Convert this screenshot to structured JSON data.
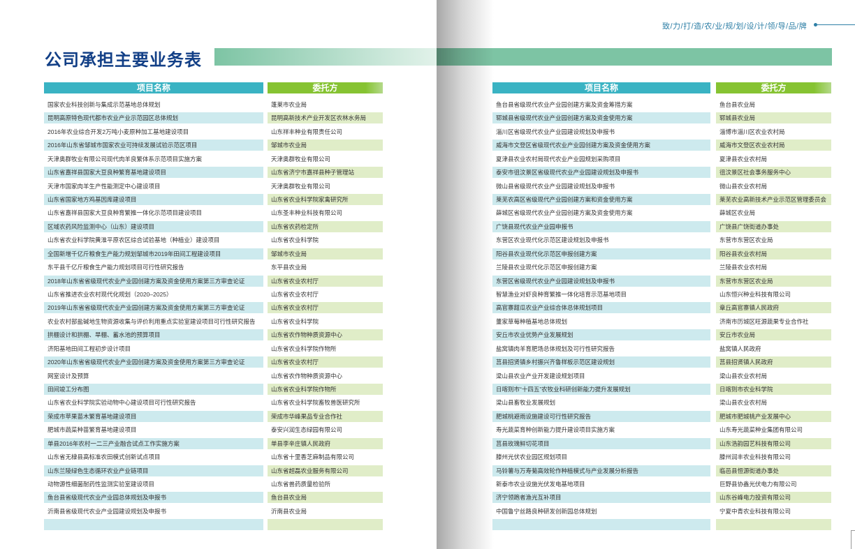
{
  "header": {
    "title": "公司承担主要业务表",
    "slogan": "致/力/打/造/农/业/规/划/设/计/领/导/品/牌"
  },
  "colors": {
    "title": "#123f86",
    "name_header": "#3ab3c3",
    "client_header": "#86c332",
    "banner": "#7dc4a4",
    "name_stripe": "#cdeaee",
    "client_stripe": "#e0edc8"
  },
  "tables": [
    {
      "col_name": "项目名称",
      "col_client": "委托方",
      "rows": [
        [
          "国家农业科技创新与集成示范基地总体规划",
          "蓬莱市农业局"
        ],
        [
          "昆明高原特色现代都市农业产业示范园区总体规划",
          "昆明高新技术产业开发区农林水务局"
        ],
        [
          "2016年农业综合开发2万吨小麦原种加工基地建设项目",
          "山东祥丰种业有限责任公司"
        ],
        [
          "2016年山东省邹城市国家农业可持续发展试验示范区项目",
          "邹城市农业局"
        ],
        [
          "天津奥群牧业有限公司现代肉羊良繁体系示范项目实施方案",
          "天津奥群牧业有限公司"
        ],
        [
          "山东省嘉祥县国家大豆良种繁育基地建设项目",
          "山东省济宁市嘉祥县种子管理站"
        ],
        [
          "天津市国家肉羊生产性能测定中心建设项目",
          "天津奥群牧业有限公司"
        ],
        [
          "山东省国家地方鸡基因库建设项目",
          "山东省农业科学院家禽研究所"
        ],
        [
          "山东省嘉祥县国家大豆良种育繁推一体化示范项目建设项目",
          "山东圣丰种业科技有限公司"
        ],
        [
          "区域农药风险监测中心（山东）建设项目",
          "山东省农药检定所"
        ],
        [
          "山东省农业科学院黄淮平原农区综合试验基地（种植业）建设项目",
          "山东省农业科学院"
        ],
        [
          "全国新增千亿斤粮食生产能力规划邹城市2019年田间工程建设项目",
          "邹城市农业局"
        ],
        [
          "东平县千亿斤粮食生产能力规划项目可行性研究报告",
          "东平县农业局"
        ],
        [
          "2018年山东省省级现代农业产业园创建方案及资金使用方案第三方审查论证",
          "山东省农业农村厅"
        ],
        [
          "山东省推进农业农村现代化规划（2020–2025）",
          "山东省农业农村厅"
        ],
        [
          "2019年山东省省级现代农业产业园创建方案及资金使用方案第三方审查论证",
          "山东省农业农村厅"
        ],
        [
          "农业农村部盐碱地生物资源收集与评价利用重点实验室建设项目可行性研究报告",
          "山东省农业科学院"
        ],
        [
          "拱棚设计和拱棚、旱棚、蓄水池的预算项目",
          "山东省农作物种质资源中心"
        ],
        [
          "济阳基地田间工程初步设计项目",
          "山东省农业科学院作物所"
        ],
        [
          "2020年山东省省级现代农业产业园创建方案及资金使用方案第三方审查论证",
          "山东省农业农村厅"
        ],
        [
          "网室设计及预算",
          "山东省农作物种质资源中心"
        ],
        [
          "田间竣工分布图",
          "山东省农业科学院作物所"
        ],
        [
          "山东省农业科学院实验动物中心建设项目可行性研究报告",
          "山东省农业科学院畜牧兽医研究所"
        ],
        [
          "荣成市苹果苗木繁育基地建设项目",
          "荣成市华峰果品专业合作社"
        ],
        [
          "肥城市蔬菜种苗繁育基地建设项目",
          "泰安兴润生态绿园有限公司"
        ],
        [
          "单县2016年农村一二三产业融合试点工作实施方案",
          "单县李辛庄镇人民政府"
        ],
        [
          "山东省无棣县高标准农田模式创新试点项目",
          "山东省十里香芝麻制品有限公司"
        ],
        [
          "山东兰陵绿色生态循环农业产业链项目",
          "山东省超磊农业服务有限公司"
        ],
        [
          "动物源性细菌耐药性监测实验室建设项目",
          "山东省兽药质量检验所"
        ],
        [
          "鱼台县省级现代农业产业园总体规划及申报书",
          "鱼台县农业局"
        ],
        [
          "沂南县省级现代农业产业园建设规划及申报书",
          "沂南县农业局"
        ],
        [
          "",
          ""
        ]
      ]
    },
    {
      "col_name": "项目名称",
      "col_client": "委托方",
      "rows": [
        [
          "鱼台县省级现代农业产业园创建方案及资金筹措方案",
          "鱼台县农业局"
        ],
        [
          "郓城县省级现代农业产业园创建方案及资金使用方案",
          "郓城县农业局"
        ],
        [
          "淄川区省级现代农业产业园建设规划及申报书",
          "淄博市淄川区农业农村局"
        ],
        [
          "威海市文登区省级现代农业产业园创建方案及资金使用方案",
          "威海市文登区农业农村局"
        ],
        [
          "夏津县农业农村局现代农业产业园规划采购项目",
          "夏津县农业农村局"
        ],
        [
          "泰安市徂汶景区省级现代农业产业园建设规划及申报书",
          "徂汶景区社会事务服务中心"
        ],
        [
          "微山县省级现代农业产业园建设规划及申报书",
          "微山县农业农村局"
        ],
        [
          "莱芜农高区省级现代产业园创建方案和资金使用方案",
          "莱芜农业高新技术产业示范区管理委员会"
        ],
        [
          "薛城区省级现代农业产业园创建方案及资金使用方案",
          "薛城区农业局"
        ],
        [
          "广饶县现代农业产业园申报书",
          "广饶县广饶街道办事处"
        ],
        [
          "东营区农业现代化示范区建设规划及申报书",
          "东营市东营区农业局"
        ],
        [
          "阳谷县农业现代化示范区申报创建方案",
          "阳谷县农业农村局"
        ],
        [
          "兰陵县农业现代化示范区申报创建方案",
          "兰陵县农业农村局"
        ],
        [
          "东营区省级现代农业产业园建设规划及申报书",
          "东营市东营区农业局"
        ],
        [
          "智慧渔业对虾良种育繁推一体化培育示范基地项目",
          "山东恒兴种业科技有限公司"
        ],
        [
          "高官寨甜瓜农业产业综合体总体规划项目",
          "章丘高官寨镇人民政府"
        ],
        [
          "董家草莓种植基地总体规划",
          "济南市历城区旺源蔬果专业合作社"
        ],
        [
          "安丘市农业优势产业发展规划",
          "安丘市农业局"
        ],
        [
          "盐窝镇肉羊育肥场总体规划及可行性研究报告",
          "盐窝镇人民政府"
        ],
        [
          "莒县招贤镇乡村振兴齐鲁样板示范区建设规划",
          "莒县招贤镇人民政府"
        ],
        [
          "梁山县农业产业开发建设规划项目",
          "梁山县农业农村局"
        ],
        [
          "日喀则市“十四五”农牧业科研创新能力提升发展规划",
          "日喀则市农业科学院"
        ],
        [
          "梁山县畜牧业发展规划",
          "梁山县农业农村局"
        ],
        [
          "肥城桃避雨设施建设可行性研究报告",
          "肥城市肥城桃产业发展中心"
        ],
        [
          "寿光蔬菜育种创新能力提升建设项目实施方案",
          "山东寿光蔬菜种业集团有限公司"
        ],
        [
          "莒县玫瑰鲜切花项目",
          "山东浩韵园艺科技有限公司"
        ],
        [
          "滕州光伏农业园区规划项目",
          "滕州润丰农业科技有限公司"
        ],
        [
          "马铃薯与万寿菊高效轮作种植模式与产业发展分析报告",
          "临邑县恒源街道办事处"
        ],
        [
          "新泰市农业设施光伏发电基地项目",
          "巨野县协鑫光伏电力有限公司"
        ],
        [
          "济宁领跑者渔光互补项目",
          "山东谷峰电力投资有限公司"
        ],
        [
          "中国鲁宁丝路良种研发创新园总体规划",
          "宁夏中青农业科技有限公司"
        ],
        [
          "",
          ""
        ]
      ]
    }
  ]
}
